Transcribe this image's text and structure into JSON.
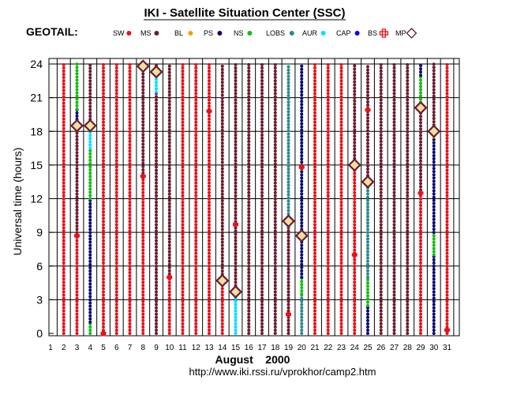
{
  "header": {
    "title": "IKI - Satellite Situation Center (SSC)",
    "mission": "GEOTAIL:"
  },
  "footer": {
    "url": "http://www.iki.rssi.ru/vprokhor/camp2.htm"
  },
  "legend": [
    {
      "code": "SW",
      "color": "#e8101a",
      "marker": "dot"
    },
    {
      "code": "MS",
      "color": "#6b1c2e",
      "marker": "dot"
    },
    {
      "code": "BL",
      "color": "#f0a000",
      "marker": "dot"
    },
    {
      "code": "PS",
      "color": "#0a0a6e",
      "marker": "dot"
    },
    {
      "code": "NS",
      "color": "#10c010",
      "marker": "dot"
    },
    {
      "code": "LOBS",
      "color": "#2e8a8a",
      "marker": "dot"
    },
    {
      "code": "AUR",
      "color": "#00e0ff",
      "marker": "dot"
    },
    {
      "code": "CAP",
      "color": "#0000ff",
      "marker": "dot"
    },
    {
      "code": "BS",
      "color": "#e8101a",
      "marker": "cross"
    },
    {
      "code": "MP",
      "color": "#6b1c2e",
      "marker": "diamond"
    }
  ],
  "chart_data": {
    "type": "scatter",
    "xlabel": "August    2000",
    "ylabel": "Universal time (hours)",
    "xlim": [
      1,
      31
    ],
    "ylim": [
      0,
      24
    ],
    "x_ticks": [
      1,
      2,
      3,
      4,
      5,
      6,
      7,
      8,
      9,
      10,
      11,
      12,
      13,
      14,
      15,
      16,
      17,
      18,
      19,
      20,
      21,
      22,
      23,
      24,
      25,
      26,
      27,
      28,
      29,
      30,
      31
    ],
    "y_ticks": [
      0,
      3,
      6,
      9,
      12,
      15,
      18,
      21,
      24
    ],
    "grid": true,
    "region_segments": {
      "2": [
        [
          "SW",
          0,
          24
        ]
      ],
      "3": [
        [
          "SW",
          0,
          8.7
        ],
        [
          "MS",
          8.7,
          18.5
        ],
        [
          "PS",
          18.5,
          20
        ],
        [
          "NS",
          20,
          24
        ]
      ],
      "4": [
        [
          "NS",
          0,
          1
        ],
        [
          "PS",
          1,
          12
        ],
        [
          "NS",
          12,
          16.5
        ],
        [
          "AUR",
          16.5,
          18.5
        ],
        [
          "MS",
          18.5,
          24
        ]
      ],
      "5": [
        [
          "SW",
          0,
          24
        ]
      ],
      "6": [
        [
          "SW",
          0,
          24
        ]
      ],
      "7": [
        [
          "SW",
          0,
          24
        ]
      ],
      "8": [
        [
          "SW",
          0,
          14
        ],
        [
          "MS",
          14,
          24
        ]
      ],
      "9": [
        [
          "MS",
          0,
          21.5
        ],
        [
          "AUR",
          21.5,
          23.3
        ],
        [
          "MS",
          23.3,
          24
        ]
      ],
      "10": [
        [
          "SW",
          0,
          5
        ],
        [
          "MS",
          5,
          24
        ]
      ],
      "11": [
        [
          "SW",
          0,
          24
        ]
      ],
      "12": [
        [
          "SW",
          0,
          24
        ]
      ],
      "13": [
        [
          "SW",
          0,
          24
        ]
      ],
      "14": [
        [
          "SW",
          0,
          4.7
        ],
        [
          "MS",
          4.7,
          24
        ]
      ],
      "15": [
        [
          "AUR",
          0,
          3.7
        ],
        [
          "MS",
          3.7,
          24
        ]
      ],
      "16": [
        [
          "MS",
          0,
          24
        ]
      ],
      "17": [
        [
          "MS",
          0,
          24
        ]
      ],
      "18": [
        [
          "MS",
          0,
          24
        ]
      ],
      "19": [
        [
          "MS",
          0,
          9.5
        ],
        [
          "LOBS",
          9.5,
          24
        ]
      ],
      "20": [
        [
          "LOBS",
          0,
          3.5
        ],
        [
          "NS",
          3.5,
          5
        ],
        [
          "PS",
          5,
          24
        ]
      ],
      "21": [
        [
          "SW",
          0,
          24
        ]
      ],
      "22": [
        [
          "SW",
          0,
          24
        ]
      ],
      "23": [
        [
          "SW",
          0,
          24
        ]
      ],
      "24": [
        [
          "SW",
          0,
          15
        ],
        [
          "MS",
          15,
          24
        ]
      ],
      "25": [
        [
          "PS",
          0,
          2.5
        ],
        [
          "NS",
          2.5,
          5
        ],
        [
          "LOBS",
          5,
          13.5
        ],
        [
          "MS",
          13.5,
          24
        ]
      ],
      "26": [
        [
          "MS",
          0,
          24
        ]
      ],
      "27": [
        [
          "MS",
          0,
          24
        ]
      ],
      "28": [
        [
          "MS",
          0,
          24
        ]
      ],
      "29": [
        [
          "SW",
          0,
          12.5
        ],
        [
          "MS",
          12.5,
          20
        ],
        [
          "NS",
          20,
          23
        ],
        [
          "PS",
          23,
          24
        ]
      ],
      "30": [
        [
          "PS",
          0,
          7
        ],
        [
          "NS",
          7,
          9
        ],
        [
          "PS",
          9,
          17.5
        ],
        [
          "BL",
          17.5,
          18
        ],
        [
          "MS",
          18,
          24
        ]
      ],
      "31": [
        [
          "SW",
          0,
          24
        ]
      ]
    },
    "bow_shock": [
      [
        3,
        8.7
      ],
      [
        5,
        0
      ],
      [
        8,
        14
      ],
      [
        10,
        5
      ],
      [
        13,
        19.8
      ],
      [
        15,
        9.7
      ],
      [
        19,
        1.7
      ],
      [
        20,
        14.8
      ],
      [
        24,
        7
      ],
      [
        25,
        19.9
      ],
      [
        29,
        12.5
      ],
      [
        31,
        0.3
      ]
    ],
    "magnetopause": [
      [
        3,
        18.5
      ],
      [
        4,
        18.5
      ],
      [
        8,
        23.8
      ],
      [
        9,
        23.3
      ],
      [
        14,
        4.7
      ],
      [
        15,
        3.7
      ],
      [
        19,
        10
      ],
      [
        20,
        8.7
      ],
      [
        24,
        15
      ],
      [
        25,
        13.5
      ],
      [
        29,
        20.1
      ],
      [
        30,
        18
      ]
    ]
  }
}
